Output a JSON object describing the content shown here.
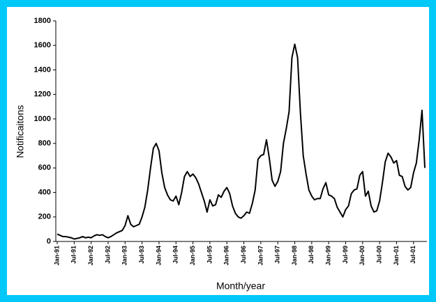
{
  "chart_data": {
    "type": "line",
    "y_label": "Notificaitons",
    "x_label": "Month/year",
    "categories": [
      "Jan-91",
      null,
      null,
      null,
      null,
      null,
      "Jul-91",
      null,
      null,
      null,
      null,
      null,
      "Jan-92",
      null,
      null,
      null,
      null,
      null,
      "Jul-92",
      null,
      null,
      null,
      null,
      null,
      "Jan-93",
      null,
      null,
      null,
      null,
      null,
      "Jul-93",
      null,
      null,
      null,
      null,
      null,
      "Jan-94",
      null,
      null,
      null,
      null,
      null,
      "Jul-94",
      null,
      null,
      null,
      null,
      null,
      "Jan-95",
      null,
      null,
      null,
      null,
      null,
      "Jul-95",
      null,
      null,
      null,
      null,
      null,
      "Jan-96",
      null,
      null,
      null,
      null,
      null,
      "Jul-96",
      null,
      null,
      null,
      null,
      null,
      "Jan-97",
      null,
      null,
      null,
      null,
      null,
      "Jul-97",
      null,
      null,
      null,
      null,
      null,
      "Jan-98",
      null,
      null,
      null,
      null,
      null,
      "Jul-98",
      null,
      null,
      null,
      null,
      null,
      "Jan-99",
      null,
      null,
      null,
      null,
      null,
      "Jul-99",
      null,
      null,
      null,
      null,
      null,
      "Jan-00",
      null,
      null,
      null,
      null,
      null,
      "Jul-00",
      null,
      null,
      null,
      null,
      null,
      "Jan-01",
      null,
      null,
      null,
      null,
      null,
      "Jul-01",
      null,
      null,
      null,
      null
    ],
    "values": [
      60,
      50,
      40,
      40,
      35,
      30,
      20,
      25,
      30,
      40,
      30,
      35,
      30,
      45,
      55,
      50,
      55,
      40,
      30,
      40,
      55,
      70,
      80,
      90,
      130,
      210,
      140,
      120,
      130,
      140,
      200,
      280,
      420,
      600,
      760,
      800,
      740,
      560,
      440,
      380,
      340,
      330,
      370,
      300,
      400,
      530,
      570,
      530,
      550,
      520,
      470,
      400,
      330,
      240,
      340,
      290,
      300,
      380,
      360,
      410,
      440,
      390,
      290,
      230,
      200,
      190,
      210,
      240,
      230,
      310,
      420,
      670,
      700,
      710,
      830,
      680,
      500,
      450,
      490,
      570,
      800,
      920,
      1060,
      1500,
      1610,
      1500,
      1050,
      700,
      550,
      420,
      370,
      340,
      350,
      350,
      430,
      480,
      380,
      370,
      350,
      280,
      240,
      200,
      260,
      290,
      390,
      420,
      430,
      540,
      570,
      370,
      410,
      290,
      240,
      250,
      330,
      480,
      650,
      720,
      690,
      640,
      660,
      540,
      530,
      450,
      420,
      440,
      560,
      640,
      830,
      1070,
      600
    ],
    "color": "#000000",
    "ylim": [
      0,
      1800
    ],
    "yticks": [
      0,
      200,
      400,
      600,
      800,
      1000,
      1200,
      1400,
      1600,
      1800
    ]
  }
}
